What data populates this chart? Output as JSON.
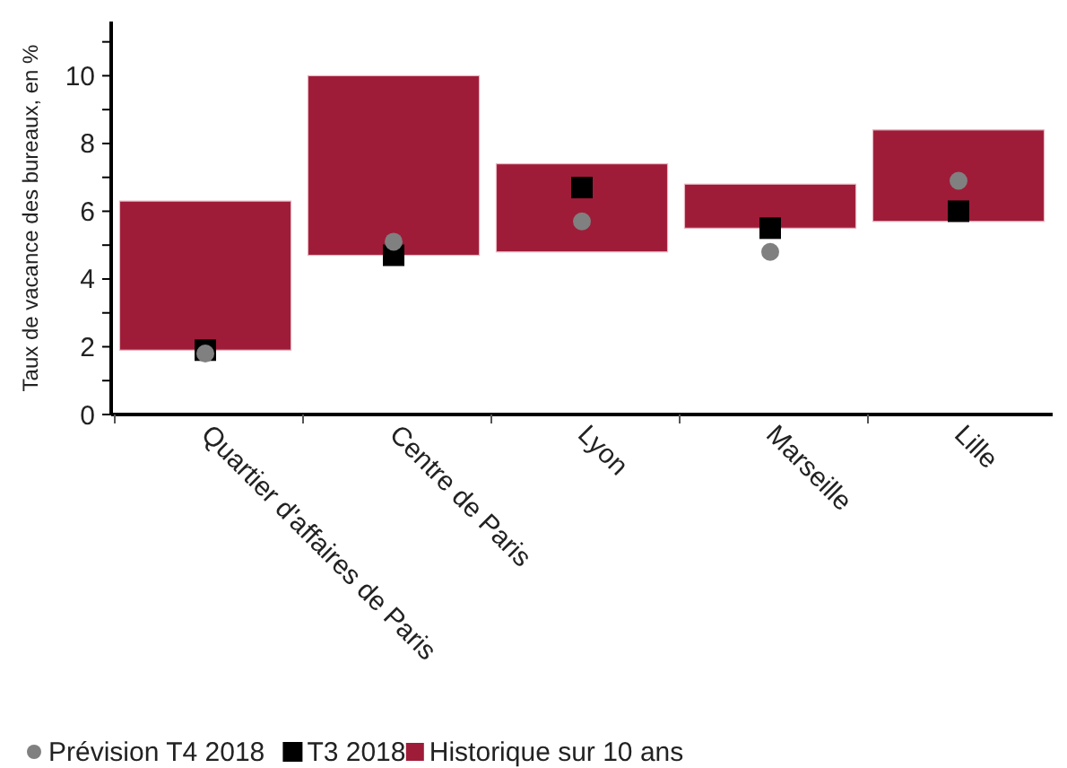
{
  "chart_data": {
    "type": "bar",
    "ylabel": "Taux de vacance des bureaux, en %",
    "categories": [
      "Quartier d'affaires de Paris",
      "Centre de Paris",
      "Lyon",
      "Marseille",
      "Lille"
    ],
    "series": [
      {
        "name": "Prévision T4 2018",
        "type": "scatter",
        "marker": "circle",
        "color": "#808080",
        "x": [
          "Quartier d'affaires de Paris",
          "Centre de Paris",
          "Lyon",
          "Marseille",
          "Lille"
        ],
        "values": [
          1.8,
          5.1,
          5.7,
          4.8,
          6.9
        ]
      },
      {
        "name": "T3 2018",
        "type": "scatter",
        "marker": "square",
        "color": "#000000",
        "x": [
          "Quartier d'affaires de Paris",
          "Centre de Paris",
          "Lyon",
          "Marseille",
          "Lille"
        ],
        "values": [
          1.9,
          4.7,
          6.7,
          5.5,
          6.0
        ]
      },
      {
        "name": "Historique sur 10 ans",
        "color": "#9e1c38",
        "base": [
          1.9,
          4.7,
          4.8,
          5.5,
          5.7
        ],
        "values": [
          4.4,
          5.3,
          2.6,
          1.3,
          2.7
        ]
      }
    ],
    "ylim": [
      0,
      11.6
    ],
    "yticks": [
      0,
      {
        "value": 1,
        "label": null
      },
      2,
      {
        "value": 3,
        "label": null
      },
      4,
      {
        "value": 5,
        "label": null
      },
      6,
      {
        "value": 7,
        "label": null
      },
      8,
      {
        "value": 9,
        "label": null
      },
      10,
      {
        "value": 11,
        "label": null
      }
    ],
    "grid": false,
    "legend": "bottom left"
  }
}
